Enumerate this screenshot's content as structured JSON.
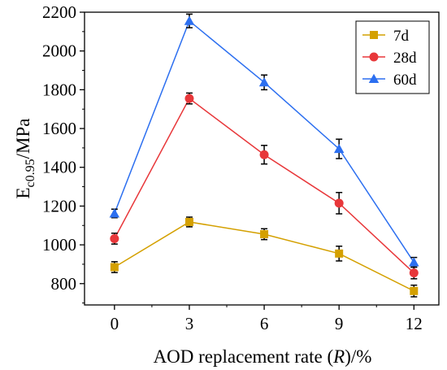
{
  "chart_data": {
    "type": "line",
    "x": [
      0,
      3,
      6,
      9,
      12
    ],
    "x_tick_labels": [
      "0",
      "3",
      "6",
      "9",
      "12"
    ],
    "y_tick_labels": [
      "800",
      "1000",
      "1200",
      "1400",
      "1600",
      "1800",
      "2000",
      "2200"
    ],
    "xlabel_parts": {
      "before": "AOD replacement rate (",
      "italic": "R",
      "after": ")/%"
    },
    "ylabel_parts": {
      "main": "E",
      "sub": "c0.95",
      "after": "/MPa"
    },
    "xlim": [
      -1.2,
      13
    ],
    "ylim": [
      690,
      2200
    ],
    "grid": false,
    "legend_position": "top-right",
    "series": [
      {
        "name": "7d",
        "color": "#d4a000",
        "marker": "square",
        "values": [
          885,
          1118,
          1055,
          955,
          762
        ],
        "errors": [
          28,
          25,
          28,
          38,
          30
        ]
      },
      {
        "name": "28d",
        "color": "#e8373a",
        "marker": "circle",
        "values": [
          1032,
          1755,
          1465,
          1215,
          855
        ],
        "errors": [
          28,
          28,
          48,
          55,
          30
        ]
      },
      {
        "name": "60d",
        "color": "#2c6ff0",
        "marker": "triangle",
        "values": [
          1162,
          2155,
          1838,
          1495,
          910
        ],
        "errors": [
          22,
          35,
          38,
          50,
          25
        ]
      }
    ]
  }
}
